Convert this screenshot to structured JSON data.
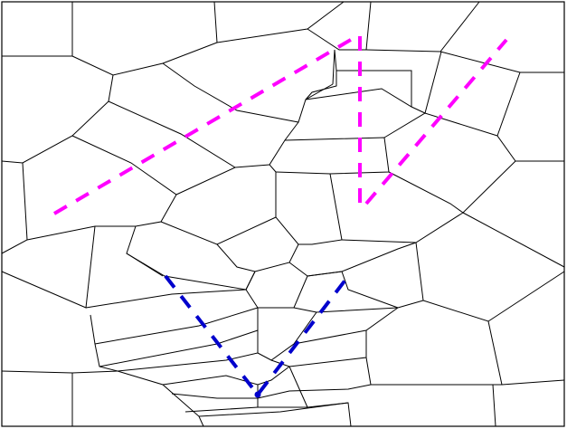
{
  "diagram": {
    "background": "#ffffff",
    "edge_color": "#000000",
    "strokes": [
      {
        "name": "magenta-stroke-left",
        "color": "#ff00ff"
      },
      {
        "name": "magenta-stroke-vertical",
        "color": "#ff00ff"
      },
      {
        "name": "magenta-stroke-right",
        "color": "#ff00ff"
      },
      {
        "name": "blue-v-stroke",
        "color": "#0000cc"
      }
    ]
  }
}
